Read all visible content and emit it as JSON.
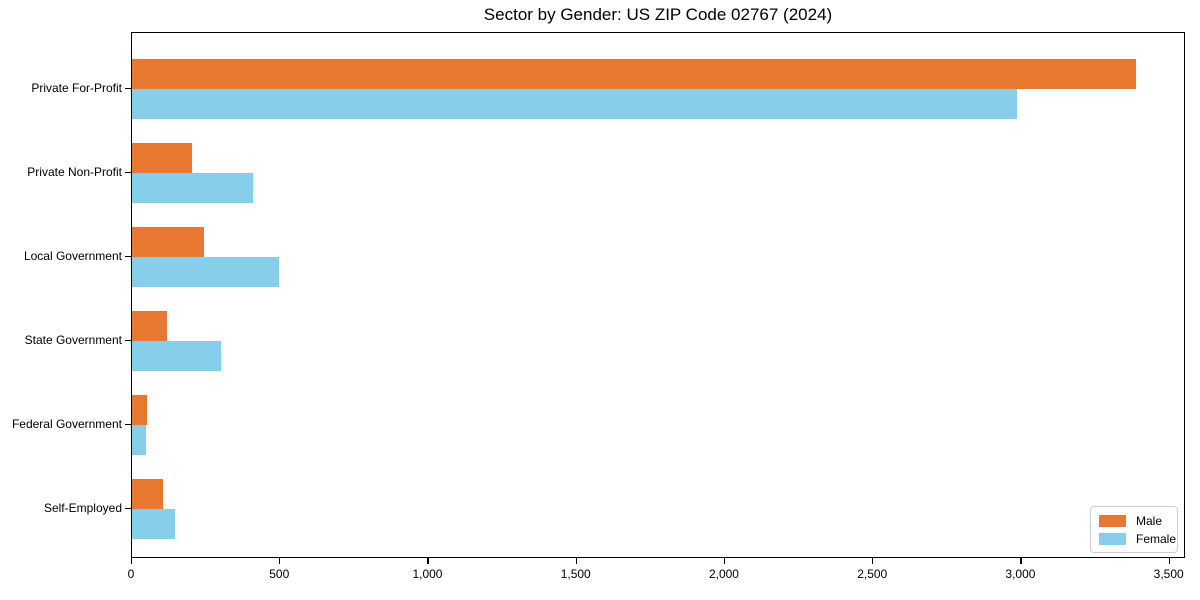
{
  "figure": {
    "background": "#ffffff"
  },
  "chart_data": {
    "type": "bar",
    "orientation": "horizontal",
    "title": "Sector by Gender: US ZIP Code 02767 (2024)",
    "xlabel": "",
    "ylabel": "",
    "categories": [
      "Private For-Profit",
      "Private Non-Profit",
      "Local Government",
      "State Government",
      "Federal Government",
      "Self-Employed"
    ],
    "series": [
      {
        "name": "Male",
        "color": "#e8772f",
        "values": [
          3386,
          202,
          244,
          117,
          52,
          104
        ]
      },
      {
        "name": "Female",
        "color": "#87ceeb",
        "values": [
          2986,
          409,
          497,
          300,
          48,
          146
        ]
      }
    ],
    "xlim": [
      0,
      3555
    ],
    "xticks": [
      0,
      500,
      1000,
      1500,
      2000,
      2500,
      3000,
      3500
    ],
    "xtick_labels": [
      "0",
      "500",
      "1,000",
      "1,500",
      "2,000",
      "2,500",
      "3,000",
      "3,500"
    ],
    "legend": {
      "position": "lower right",
      "entries": [
        "Male",
        "Female"
      ]
    },
    "grid": false,
    "axis_color": "#000000",
    "text_color": "#000000",
    "legend_border_color": "#cccccc"
  }
}
